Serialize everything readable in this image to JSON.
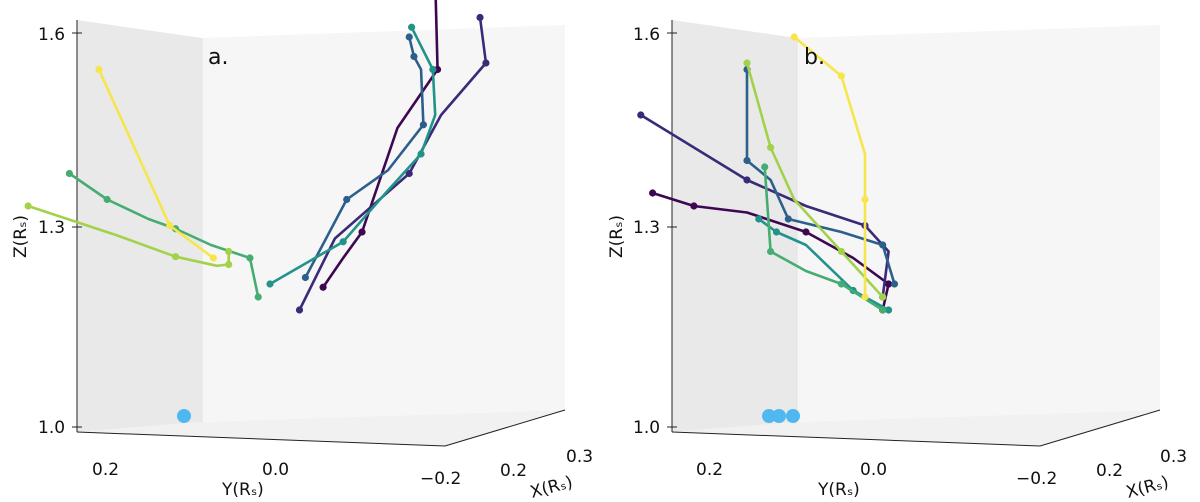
{
  "chart_data": [
    {
      "type": "line3d",
      "panel_label": "a.",
      "zlabel": "Z(Rₛ)",
      "ylabel": "Y(Rₛ)",
      "xlabel": "X(Rₛ)",
      "z_ticks": [
        "1.0",
        "1.3",
        "1.6"
      ],
      "y_ticks": [
        "0.2",
        "0.0",
        "−0.2"
      ],
      "x_ticks": [
        "0.2",
        "0.3"
      ],
      "series": [
        {
          "color": "#3e0751",
          "points": [
            [
              -0.14,
              1.69
            ],
            [
              -0.142,
              1.55
            ],
            [
              -0.108,
              1.46
            ],
            [
              -0.078,
              1.3
            ],
            [
              -0.062,
              1.26
            ],
            [
              -0.045,
              1.215
            ]
          ]
        },
        {
          "color": "#3b2a78",
          "points": [
            [
              -0.178,
              1.63
            ],
            [
              -0.183,
              1.56
            ],
            [
              -0.145,
              1.48
            ],
            [
              -0.118,
              1.39
            ],
            [
              -0.055,
              1.29
            ],
            [
              -0.025,
              1.18
            ]
          ]
        },
        {
          "color": "#2d5f8c",
          "points": [
            [
              -0.118,
              1.6
            ],
            [
              -0.122,
              1.57
            ],
            [
              -0.128,
              1.55
            ],
            [
              -0.13,
              1.465
            ],
            [
              -0.1,
              1.395
            ],
            [
              -0.065,
              1.35
            ],
            [
              -0.03,
              1.23
            ]
          ]
        },
        {
          "color": "#22938a",
          "points": [
            [
              -0.12,
              1.615
            ],
            [
              -0.138,
              1.55
            ],
            [
              -0.14,
              1.48
            ],
            [
              -0.128,
              1.42
            ],
            [
              -0.098,
              1.36
            ],
            [
              -0.062,
              1.285
            ],
            [
              0.0,
              1.22
            ]
          ]
        },
        {
          "color": "#46ad72",
          "points": [
            [
              0.01,
              1.2
            ],
            [
              0.017,
              1.26
            ],
            [
              0.05,
              1.28
            ],
            [
              0.08,
              1.305
            ],
            [
              0.103,
              1.32
            ],
            [
              0.138,
              1.35
            ],
            [
              0.17,
              1.39
            ]
          ]
        },
        {
          "color": "#a2d24a",
          "points": [
            [
              0.035,
              1.27
            ],
            [
              0.035,
              1.25
            ],
            [
              0.045,
              1.248
            ],
            [
              0.08,
              1.262
            ],
            [
              0.13,
              1.295
            ],
            [
              0.205,
              1.34
            ]
          ]
        },
        {
          "color": "#f6e64b",
          "points": [
            [
              0.048,
              1.26
            ],
            [
              0.085,
              1.31
            ],
            [
              0.13,
              1.49
            ],
            [
              0.145,
              1.55
            ]
          ]
        }
      ],
      "sphere_points": [
        {
          "y": 0.2,
          "z": 1.0,
          "color": "#4fb8f1"
        }
      ]
    },
    {
      "type": "line3d",
      "panel_label": "b.",
      "zlabel": "Z(Rₛ)",
      "ylabel": "Y(Rₛ)",
      "xlabel": "X(Rₛ)",
      "z_ticks": [
        "1.0",
        "1.3",
        "1.6"
      ],
      "y_ticks": [
        "0.2",
        "0.0",
        "−0.2"
      ],
      "x_ticks": [
        "0.2",
        "0.3"
      ],
      "series": [
        {
          "color": "#3e0751",
          "points": [
            [
              0.18,
              1.36
            ],
            [
              0.145,
              1.34
            ],
            [
              0.1,
              1.33
            ],
            [
              0.05,
              1.3
            ],
            [
              0.01,
              1.26
            ],
            [
              -0.02,
              1.22
            ],
            [
              -0.015,
              1.18
            ]
          ]
        },
        {
          "color": "#3b2a78",
          "points": [
            [
              0.19,
              1.48
            ],
            [
              0.1,
              1.38
            ],
            [
              0.05,
              1.34
            ],
            [
              0.0,
              1.31
            ],
            [
              -0.02,
              1.27
            ],
            [
              -0.015,
              1.2
            ]
          ]
        },
        {
          "color": "#2d5f8c",
          "points": [
            [
              -0.025,
              1.22
            ],
            [
              -0.015,
              1.28
            ],
            [
              0.02,
              1.3
            ],
            [
              0.065,
              1.32
            ],
            [
              0.08,
              1.38
            ],
            [
              0.1,
              1.41
            ],
            [
              0.1,
              1.55
            ]
          ]
        },
        {
          "color": "#22938a",
          "points": [
            [
              -0.02,
              1.18
            ],
            [
              0.01,
              1.21
            ],
            [
              0.05,
              1.28
            ],
            [
              0.075,
              1.3
            ],
            [
              0.09,
              1.32
            ]
          ]
        },
        {
          "color": "#46ad72",
          "points": [
            [
              -0.015,
              1.18
            ],
            [
              0.02,
              1.22
            ],
            [
              0.05,
              1.24
            ],
            [
              0.08,
              1.27
            ],
            [
              0.085,
              1.4
            ]
          ]
        },
        {
          "color": "#a2d24a",
          "points": [
            [
              -0.015,
              1.2
            ],
            [
              0.02,
              1.27
            ],
            [
              0.06,
              1.35
            ],
            [
              0.08,
              1.43
            ],
            [
              0.1,
              1.56
            ]
          ]
        },
        {
          "color": "#f6e64b",
          "points": [
            [
              0.0,
              1.2
            ],
            [
              0.0,
              1.35
            ],
            [
              0.0,
              1.42
            ],
            [
              0.02,
              1.54
            ],
            [
              0.06,
              1.6
            ]
          ]
        }
      ],
      "sphere_points": [
        {
          "y": 0.2,
          "z": 1.0,
          "color": "#4fb8f1"
        },
        {
          "y": 0.18,
          "z": 1.0,
          "color": "#4fb8f1"
        },
        {
          "y": 0.17,
          "z": 1.0,
          "color": "#4fb8f1"
        }
      ]
    }
  ]
}
